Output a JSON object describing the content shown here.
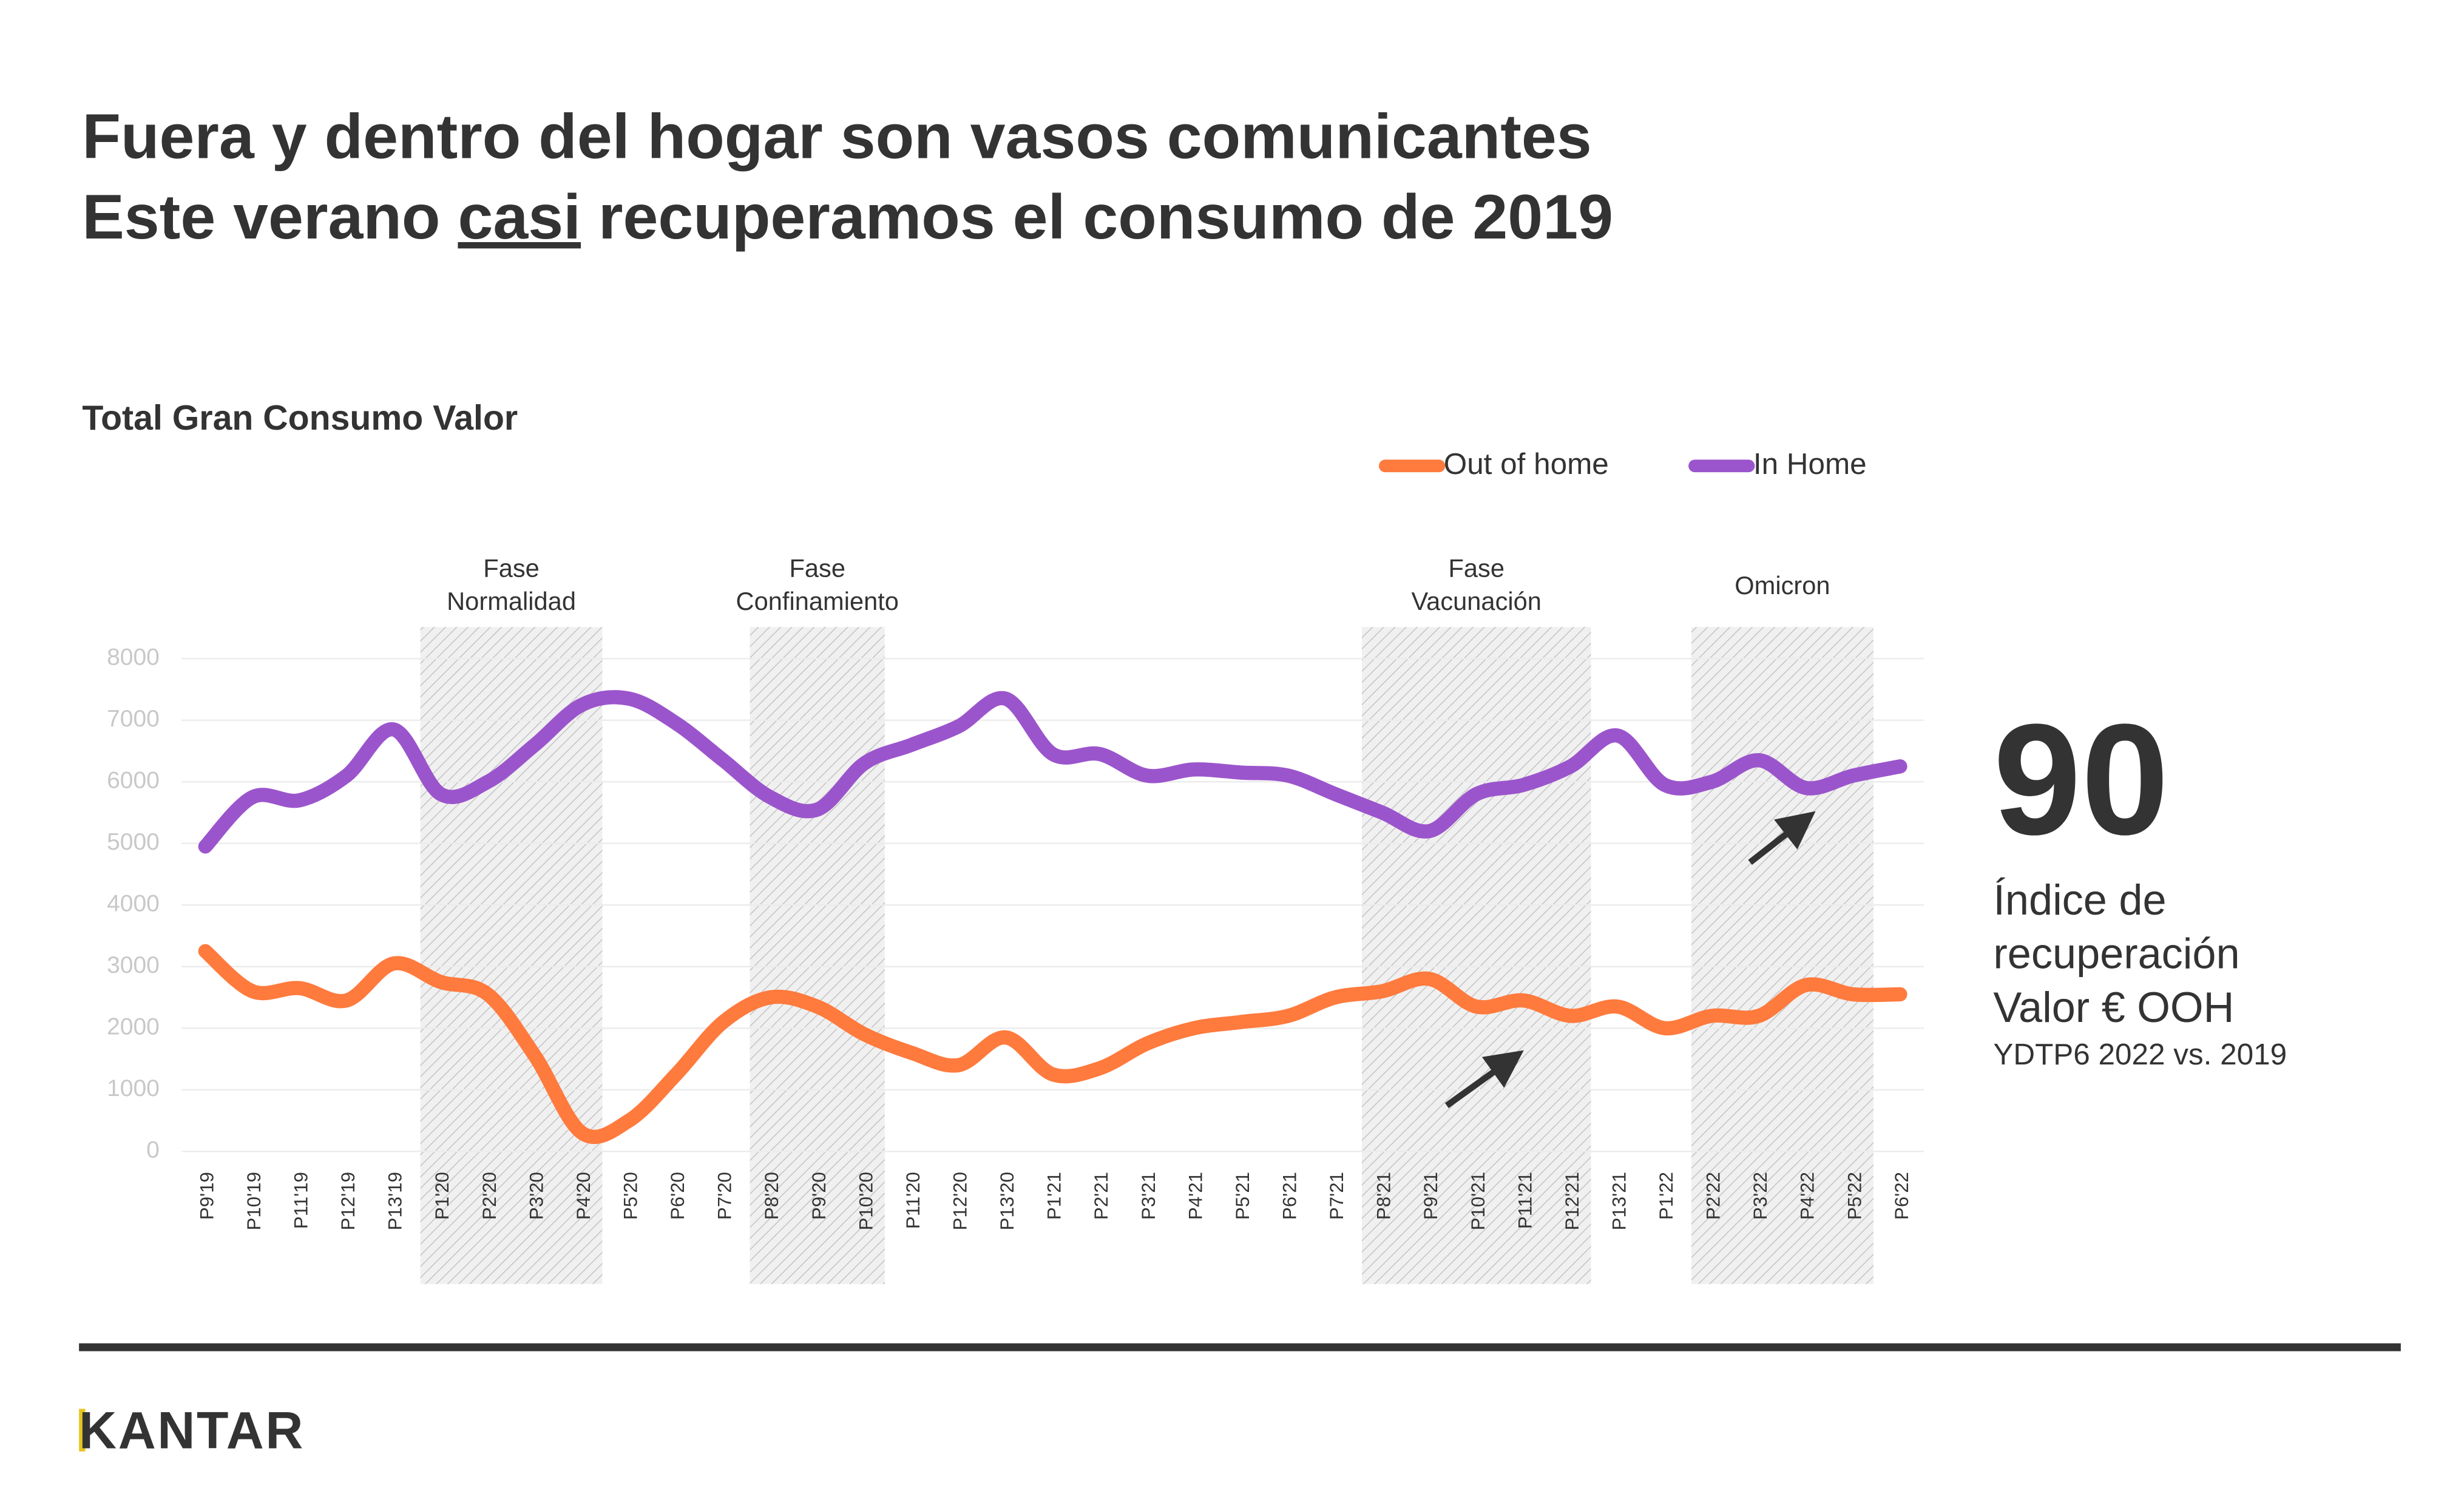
{
  "headline": {
    "line1": "Fuera y dentro del hogar son vasos comunicantes",
    "line2_parts": [
      "Este verano ",
      "casi",
      " recuperamos el consumo de 2019"
    ]
  },
  "chart_data": {
    "type": "line",
    "title": "Total Gran Consumo Valor",
    "categories": [
      "P9'19",
      "P10'19",
      "P11'19",
      "P12'19",
      "P13'19",
      "P1'20",
      "P2'20",
      "P3'20",
      "P4'20",
      "P5'20",
      "P6'20",
      "P7'20",
      "P8'20",
      "P9'20",
      "P10'20",
      "P11'20",
      "P12'20",
      "P13'20",
      "P1'21",
      "P2'21",
      "P3'21",
      "P4'21",
      "P5'21",
      "P6'21",
      "P7'21",
      "P8'21",
      "P9'21",
      "P10'21",
      "P11'21",
      "P12'21",
      "P13'21",
      "P1'22",
      "P2'22",
      "P3'22",
      "P4'22",
      "P5'22",
      "P6'22"
    ],
    "series": [
      {
        "name": "Out of home",
        "color": "#ff7a3d",
        "values": [
          3250,
          2600,
          2650,
          2450,
          3050,
          2750,
          2550,
          1550,
          300,
          500,
          1250,
          2100,
          2500,
          2350,
          1900,
          1600,
          1400,
          1850,
          1250,
          1350,
          1750,
          2000,
          2100,
          2200,
          2500,
          2600,
          2800,
          2350,
          2450,
          2200,
          2350,
          2000,
          2200,
          2200,
          2700,
          2550,
          2550
        ]
      },
      {
        "name": "In Home",
        "color": "#9b55cc",
        "values": [
          4950,
          5750,
          5700,
          6100,
          6850,
          5800,
          6000,
          6600,
          7250,
          7350,
          6950,
          6350,
          5750,
          5550,
          6300,
          6600,
          6900,
          7350,
          6450,
          6450,
          6100,
          6200,
          6150,
          6100,
          5800,
          5500,
          5200,
          5800,
          5950,
          6250,
          6750,
          5950,
          6000,
          6350,
          5900,
          6100,
          6250
        ]
      }
    ],
    "ylim": [
      0,
      8000
    ],
    "yticks": [
      0,
      1000,
      2000,
      3000,
      4000,
      5000,
      6000,
      7000,
      8000
    ],
    "grid": true,
    "legend": "top",
    "phases": [
      {
        "label_lines": [
          "Fase",
          "Normalidad"
        ],
        "from": "P1'20",
        "to": "P4'20"
      },
      {
        "label_lines": [
          "Fase",
          "Confinamiento"
        ],
        "from": "P8'20",
        "to": "P10'20"
      },
      {
        "label_lines": [
          "Fase",
          "Vacunación"
        ],
        "from": "P8'21",
        "to": "P12'21"
      },
      {
        "label_lines": [
          "Omicron"
        ],
        "from": "P2'22",
        "to": "P5'22"
      }
    ]
  },
  "kpi": {
    "value": "90",
    "lines": [
      "Índice de",
      "recuperación",
      "Valor € OOH"
    ],
    "note": "YDTP6 2022 vs. 2019"
  },
  "logo": "KANTAR"
}
